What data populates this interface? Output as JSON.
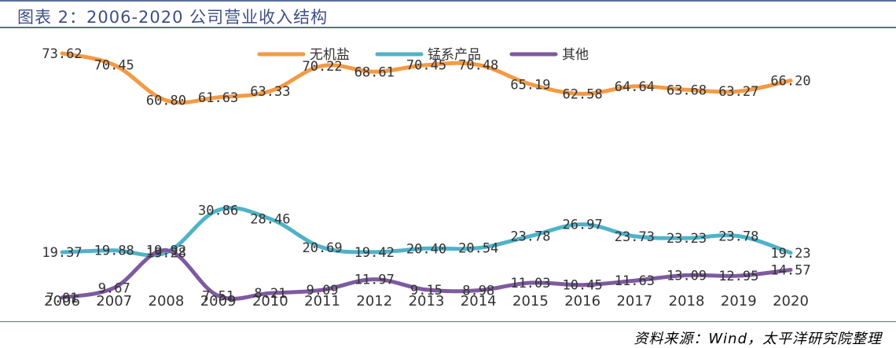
{
  "header": {
    "title": "图表 2：2006-2020 公司营业收入结构"
  },
  "footer": {
    "source": "资料来源：Wind，太平洋研究院整理"
  },
  "chart_data": {
    "type": "line",
    "title": "",
    "xlabel": "",
    "ylabel": "",
    "x": [
      "2006",
      "2007",
      "2008",
      "2009",
      "2010",
      "2011",
      "2012",
      "2013",
      "2014",
      "2015",
      "2016",
      "2017",
      "2018",
      "2019",
      "2020"
    ],
    "legend_position": "top-center",
    "grid": false,
    "y_axis_visible": false,
    "ylim": [
      0,
      80
    ],
    "series": [
      {
        "name": "无机盐",
        "color": "#f39a45",
        "values": [
          73.62,
          70.45,
          60.8,
          61.63,
          63.33,
          70.22,
          68.61,
          70.45,
          70.48,
          65.19,
          62.58,
          64.64,
          63.68,
          63.27,
          66.2
        ]
      },
      {
        "name": "锰系产品",
        "color": "#4fb3c8",
        "values": [
          19.37,
          19.88,
          19.28,
          30.86,
          28.46,
          20.69,
          19.42,
          20.4,
          20.54,
          23.78,
          26.97,
          23.73,
          23.23,
          23.78,
          19.23
        ]
      },
      {
        "name": "其他",
        "color": "#7e5aa0",
        "values": [
          7.01,
          9.67,
          19.92,
          7.51,
          8.21,
          9.09,
          11.97,
          9.15,
          8.98,
          11.03,
          10.45,
          11.63,
          13.09,
          12.95,
          14.57
        ]
      }
    ]
  }
}
